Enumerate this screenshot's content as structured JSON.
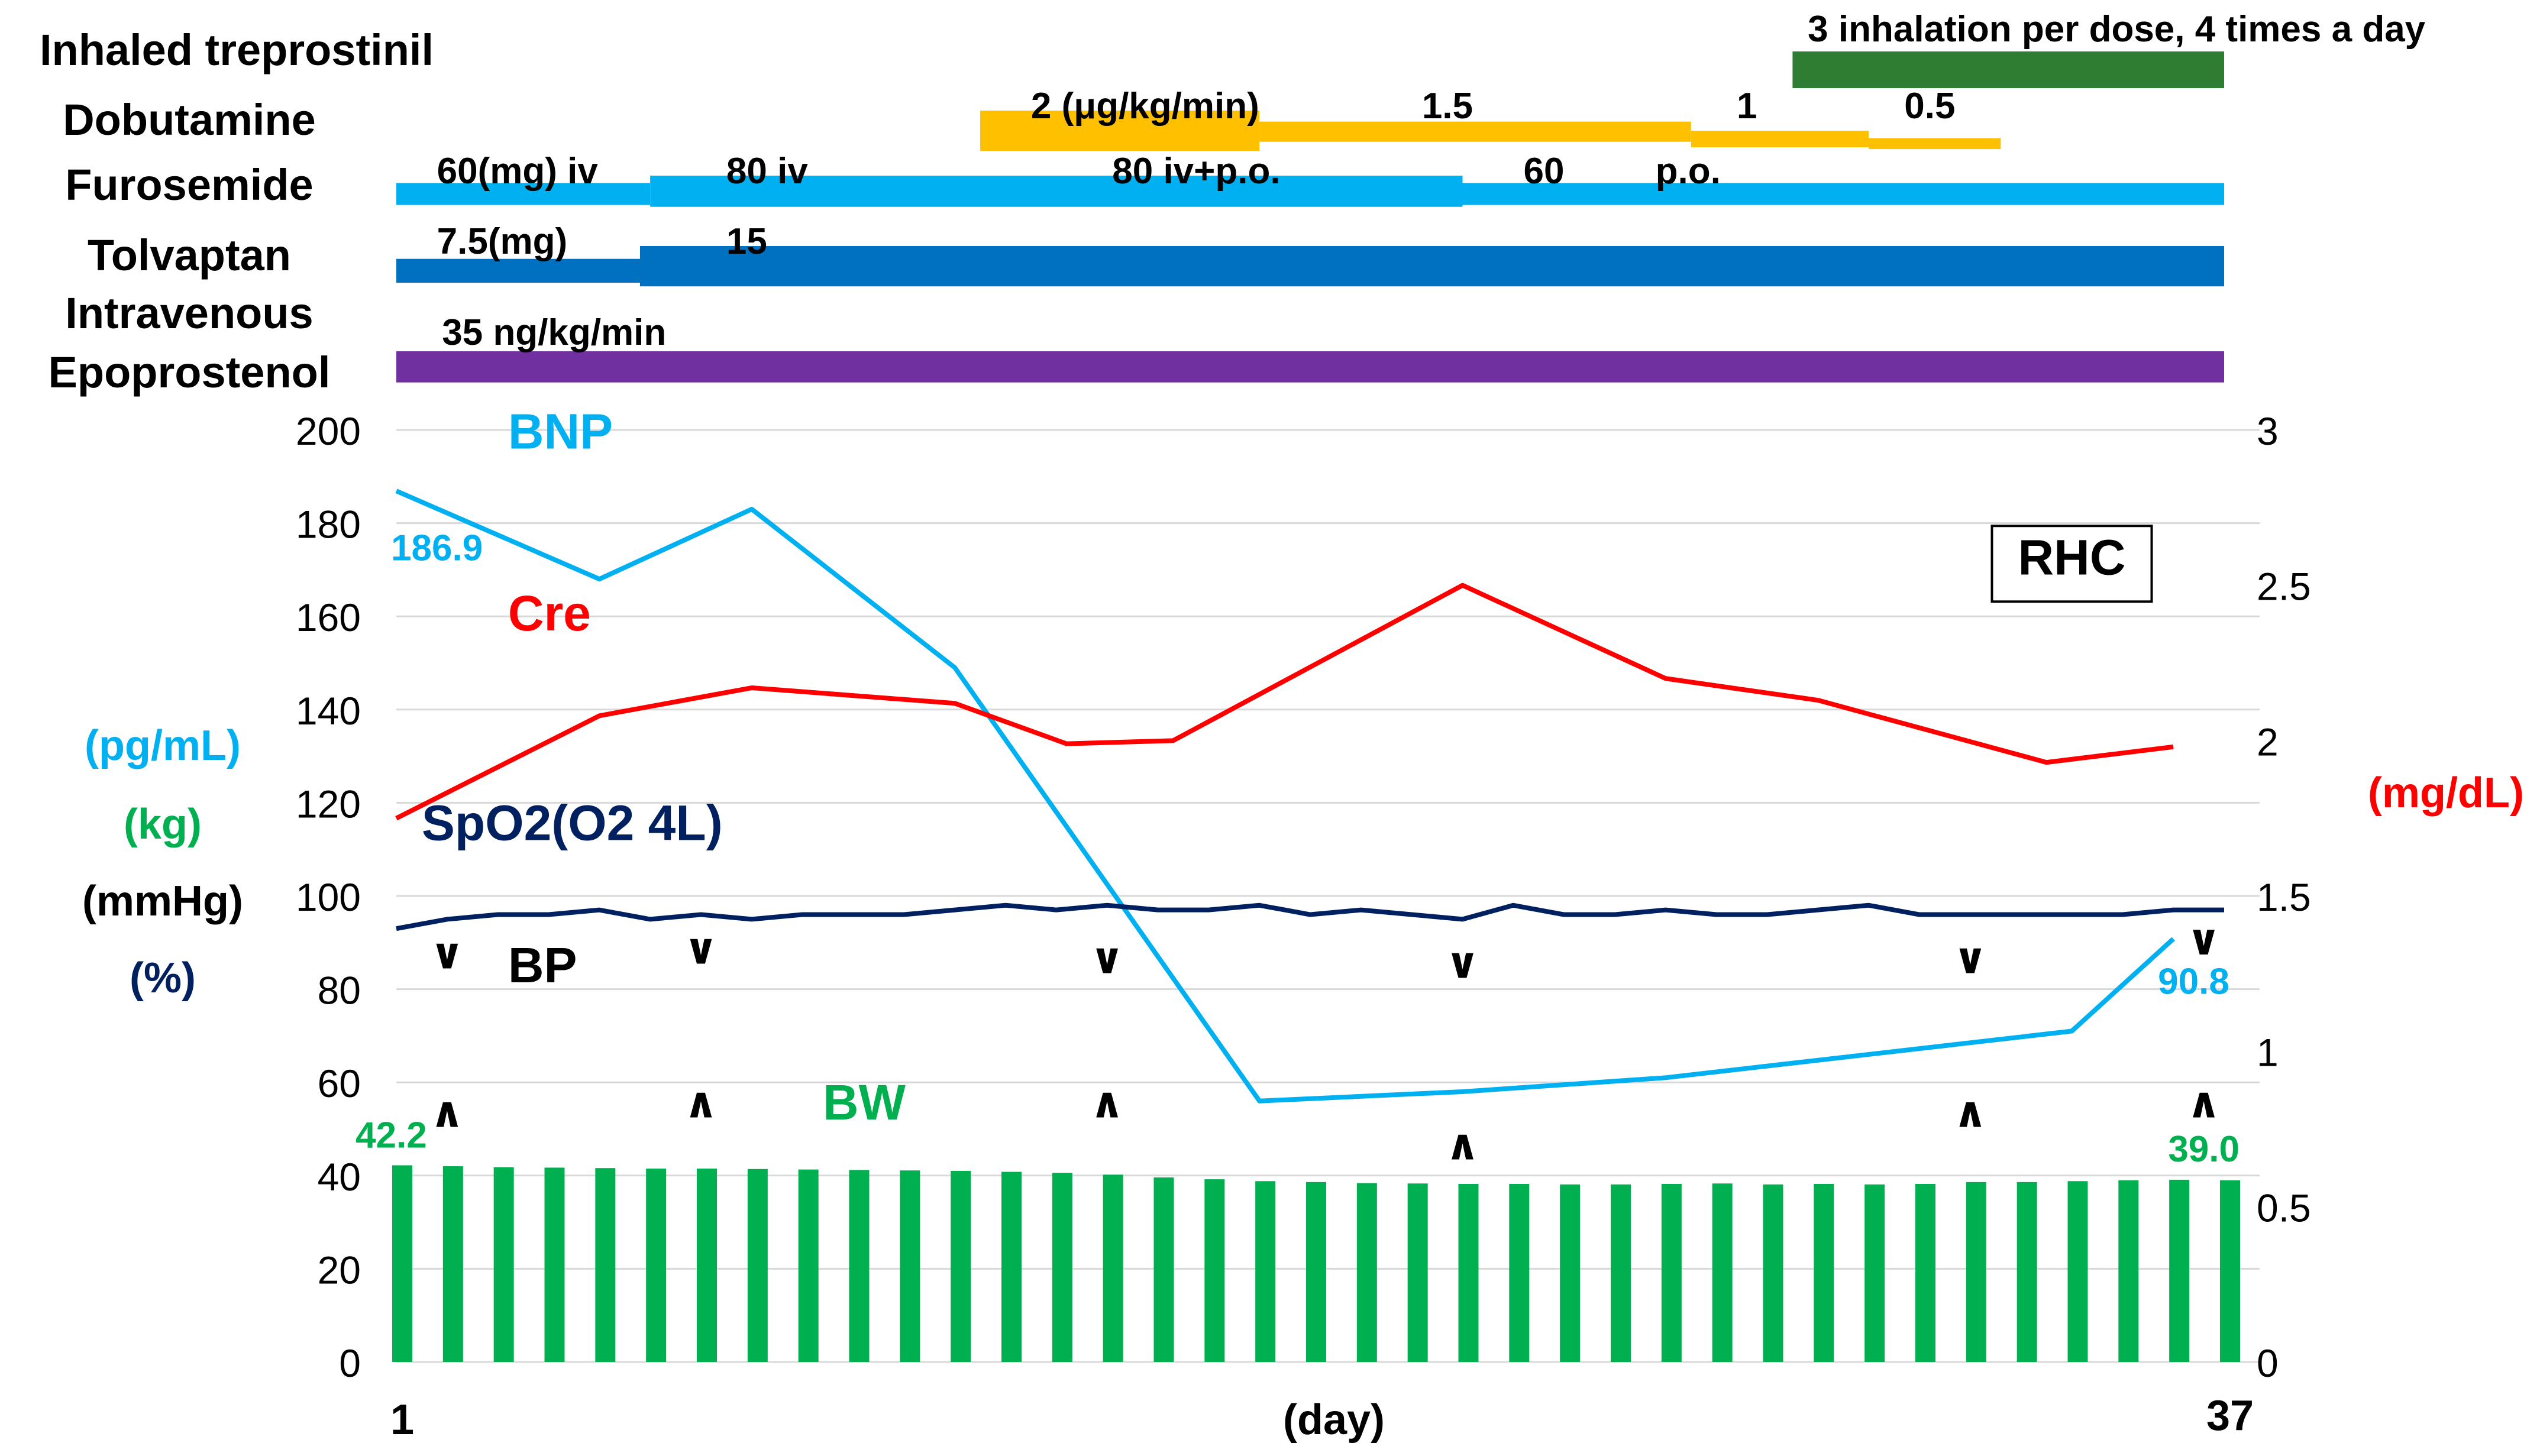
{
  "chart_data": {
    "type": "line",
    "x_axis": {
      "start_label": "1",
      "end_label": "37",
      "label": "(day)",
      "min": 1,
      "max": 37
    },
    "y_left": {
      "ticks": [
        "0",
        "20",
        "40",
        "60",
        "80",
        "100",
        "120",
        "140",
        "160",
        "180",
        "200"
      ],
      "units": [
        {
          "text": "(pg/mL)",
          "color": "#00b0f0"
        },
        {
          "text": "(kg)",
          "color": "#00b050"
        },
        {
          "text": "(mmHg)",
          "color": "#000000"
        },
        {
          "text": "(%)",
          "color": "#002060"
        }
      ],
      "ylim": [
        0,
        200
      ]
    },
    "y_right": {
      "ticks": [
        "0",
        "0.5",
        "1",
        "1.5",
        "2",
        "2.5",
        "3"
      ],
      "unit": "(mg/dL)",
      "unit_color": "#ff0000",
      "ylim": [
        0,
        3
      ]
    },
    "grid": true,
    "therapies": [
      {
        "name": "Inhaled treprostinil",
        "color": "#2e7d32",
        "bars": [
          {
            "x0": 28.5,
            "x1": 37,
            "level": "mid",
            "thick": 1
          }
        ],
        "labels": [
          {
            "text": "3 inhalation  per dose, 4 times a day",
            "x": 28.8,
            "level": "top"
          }
        ]
      },
      {
        "name": "Dobutamine",
        "color": "#ffc000",
        "bars": [
          {
            "x0": 12.5,
            "x1": 18,
            "level": "mid",
            "thick": 1.1
          },
          {
            "x0": 18,
            "x1": 26.5,
            "level": "mid",
            "thick": 0.55,
            "offset": 0.3
          },
          {
            "x0": 26.5,
            "x1": 30,
            "level": "mid",
            "thick": 0.45,
            "offset": 0.55
          },
          {
            "x0": 30,
            "x1": 32.6,
            "level": "mid",
            "thick": 0.3,
            "offset": 0.75
          }
        ],
        "labels": [
          {
            "text": "2 (μg/kg/min)",
            "x": 13.5
          },
          {
            "text": "1.5",
            "x": 21.2
          },
          {
            "text": "1",
            "x": 27.4
          },
          {
            "text": "0.5",
            "x": 30.7
          }
        ]
      },
      {
        "name": "Furosemide",
        "color": "#00b0f0",
        "bars": [
          {
            "x0": 1,
            "x1": 6,
            "level": "mid",
            "thick": 0.6,
            "offset": 0.2
          },
          {
            "x0": 6,
            "x1": 22,
            "level": "mid",
            "thick": 0.85
          },
          {
            "x0": 22,
            "x1": 37,
            "level": "mid",
            "thick": 0.6,
            "offset": 0.2
          }
        ],
        "labels": [
          {
            "text": "60(mg)  iv",
            "x": 1.8
          },
          {
            "text": "80   iv",
            "x": 7.5
          },
          {
            "text": "80   iv+p.o.",
            "x": 15.1
          },
          {
            "text": "60",
            "x": 23.2
          },
          {
            "text": "p.o.",
            "x": 25.8
          }
        ]
      },
      {
        "name": "Tolvaptan",
        "color": "#0070c0",
        "bars": [
          {
            "x0": 1,
            "x1": 5.8,
            "level": "mid",
            "thick": 0.65,
            "offset": 0.35
          },
          {
            "x0": 5.8,
            "x1": 37,
            "level": "mid",
            "thick": 1.1
          }
        ],
        "labels": [
          {
            "text": "7.5(mg)",
            "x": 1.8
          },
          {
            "text": "15",
            "x": 7.5
          }
        ]
      },
      {
        "name": "Intravenous Epoprostenol",
        "name_lines": [
          "Intravenous",
          "Epoprostenol"
        ],
        "color": "#7030a0",
        "bars": [
          {
            "x0": 1,
            "x1": 37,
            "level": "mid",
            "thick": 0.85
          }
        ],
        "labels": [
          {
            "text": "35  ng/kg/min",
            "x": 1.9
          }
        ]
      }
    ],
    "series": [
      {
        "name": "BNP",
        "axis": "left",
        "color": "#00b0f0",
        "x": [
          1,
          5,
          8,
          12,
          18,
          22,
          26,
          30,
          34,
          36
        ],
        "values": [
          186.9,
          168,
          183,
          149,
          56,
          58,
          61,
          66,
          71,
          90.8
        ],
        "label_pos": {
          "x": 3.2,
          "y": 196
        }
      },
      {
        "name": "Cre",
        "axis": "right",
        "color": "#ff0000",
        "x": [
          1,
          5,
          8,
          12,
          14.2,
          16.3,
          22,
          26,
          29,
          33.5,
          36
        ],
        "values": [
          1.75,
          2.08,
          2.17,
          2.12,
          1.99,
          2.0,
          2.5,
          2.2,
          2.13,
          1.93,
          1.98
        ],
        "label_pos": {
          "x": 3.2,
          "y": 157
        }
      },
      {
        "name": "SpO2(O2 4L)",
        "axis": "left",
        "color": "#002060",
        "x": [
          1,
          2,
          3,
          4,
          5,
          6,
          7,
          8,
          9,
          10,
          11,
          12,
          13,
          14,
          15,
          16,
          17,
          18,
          19,
          20,
          21,
          22,
          23,
          24,
          25,
          26,
          27,
          28,
          29,
          30,
          31,
          32,
          33,
          34,
          35,
          36,
          37
        ],
        "values": [
          93,
          95,
          96,
          96,
          97,
          95,
          96,
          95,
          96,
          96,
          96,
          97,
          98,
          97,
          98,
          97,
          97,
          98,
          96,
          97,
          96,
          95,
          98,
          96,
          96,
          97,
          96,
          96,
          97,
          98,
          96,
          96,
          96,
          96,
          96,
          97,
          97
        ],
        "label_pos": {
          "x": 1.5,
          "y": 112
        }
      }
    ],
    "bp": {
      "name": "BP",
      "label_pos": {
        "x": 3.2,
        "y": 85
      },
      "points": [
        {
          "x": 2,
          "systolic": 88,
          "diastolic": 54
        },
        {
          "x": 7,
          "systolic": 89,
          "diastolic": 56
        },
        {
          "x": 15,
          "systolic": 87,
          "diastolic": 56
        },
        {
          "x": 22,
          "systolic": 86,
          "diastolic": 47
        },
        {
          "x": 32,
          "systolic": 87,
          "diastolic": 54
        },
        {
          "x": 36.6,
          "systolic": 91,
          "diastolic": 56
        }
      ]
    },
    "bw": {
      "name": "BW",
      "color": "#00b050",
      "values": [
        42.2,
        42,
        41.8,
        41.7,
        41.6,
        41.5,
        41.5,
        41.4,
        41.3,
        41.2,
        41.1,
        41,
        40.8,
        40.6,
        40.2,
        39.6,
        39.2,
        38.8,
        38.6,
        38.4,
        38.3,
        38.2,
        38.2,
        38.1,
        38.1,
        38.2,
        38.3,
        38.1,
        38.2,
        38.1,
        38.2,
        38.6,
        38.6,
        38.8,
        39,
        39.1,
        39
      ],
      "label_pos": {
        "x": 9.4,
        "y": 52
      }
    },
    "annotations": [
      {
        "text": "186.9",
        "color": "#00b0f0",
        "x": 1.8,
        "y": 172
      },
      {
        "text": "90.8",
        "color": "#00b0f0",
        "x": 36.4,
        "y": 79
      },
      {
        "text": "42.2",
        "color": "#00b050",
        "x": 0.9,
        "y": 46
      },
      {
        "text": "39.0",
        "color": "#00b050",
        "x": 36.6,
        "y": 43
      },
      {
        "text": "RHC",
        "color": "#000000",
        "x": 34.0,
        "y": 169,
        "boxed": true
      }
    ]
  }
}
